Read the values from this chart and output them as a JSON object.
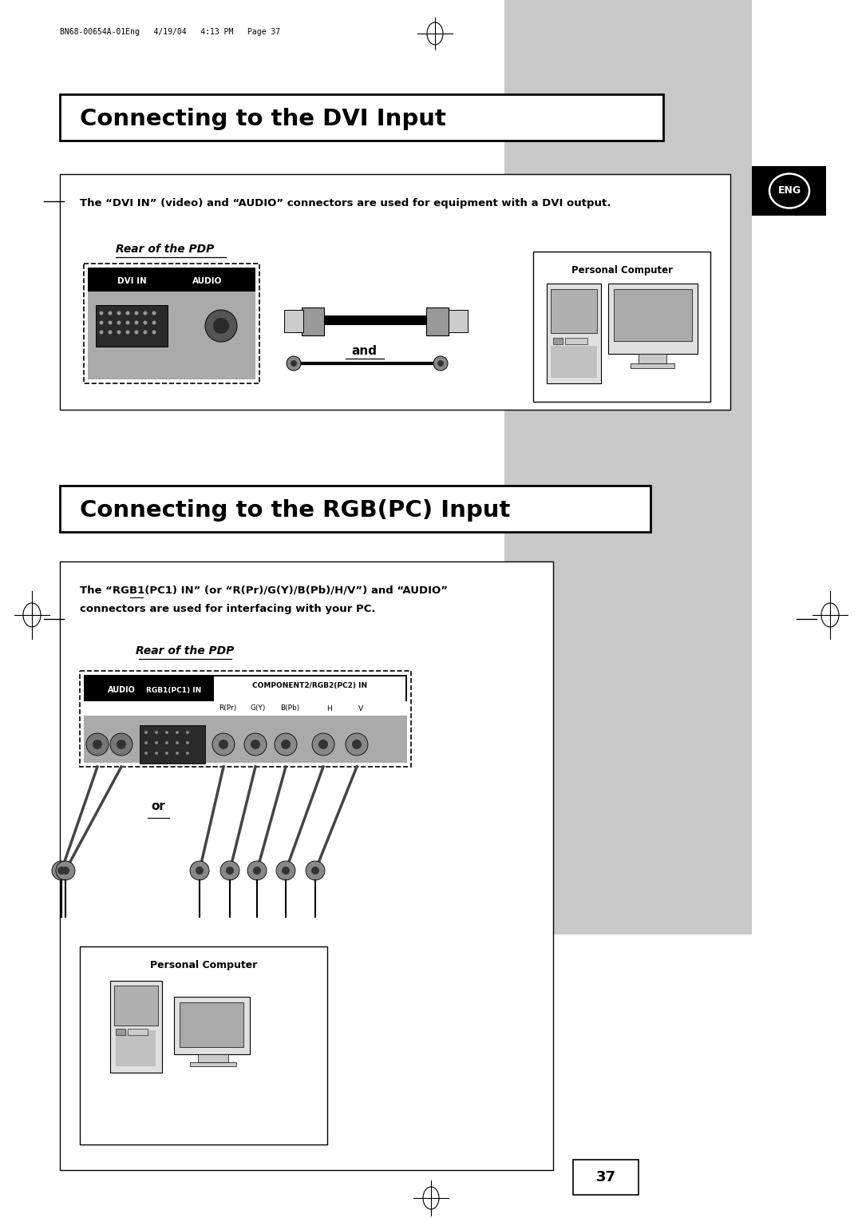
{
  "page_bg": "#ffffff",
  "gray_panel_color": "#c8c8c8",
  "header_text": "BN68-00654A-01Eng   4/19/04   4:13 PM   Page 37",
  "section1_title": "Connecting to the DVI Input",
  "section2_title": "Connecting to the RGB(PC) Input",
  "dvi_note": "The “DVI IN” (video) and “AUDIO” connectors are used for equipment with a DVI output.",
  "rgb_note_line1": "The “RGB1(PC1) IN” (or “R(Pr)/G(Y)/B(Pb)/H/V”) and “AUDIO”",
  "rgb_note_line2": "connectors are used for interfacing with your PC.",
  "rear_pdp_label": "Rear of the PDP",
  "dvi_label1": "DVI IN",
  "dvi_label2": "AUDIO",
  "and_label": "and",
  "or_label": "or",
  "personal_computer": "Personal Computer",
  "page_number": "37",
  "eng_label": "ENG",
  "audio_label": "AUDIO",
  "rgb1_label": "RGB1(PC1) IN",
  "component_label": "COMPONENT2/RGB2(PC2) IN",
  "rpr_label": "R(Pr)",
  "gy_label": "G(Y)",
  "bpb_label": "B(Pb)",
  "h_label": "H",
  "v_label": "V"
}
